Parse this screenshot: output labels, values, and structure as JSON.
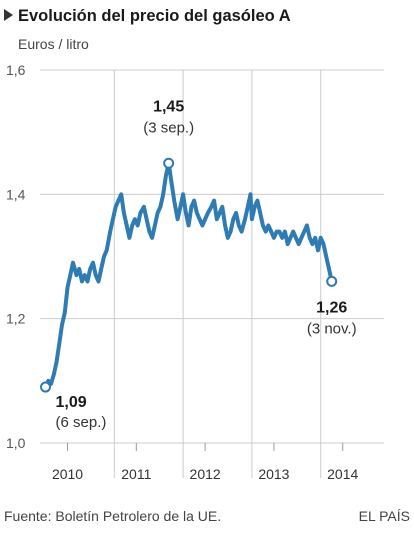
{
  "title": "Evolución del precio del gasóleo A",
  "subtitle": "Euros / litro",
  "source": "Fuente: Boletín Petrolero de la UE.",
  "brand": "EL PAÍS",
  "colors": {
    "line": "#2f7bb3",
    "grid": "#cccccc",
    "text": "#1a1a1a",
    "bullet": "#333333"
  },
  "chart_data": {
    "type": "line",
    "title": "Evolución del precio del gasóleo A",
    "ylabel": "Euros / litro",
    "xlabel": "",
    "ylim": [
      1.0,
      1.6
    ],
    "yticks": [
      1.0,
      1.2,
      1.4,
      1.6
    ],
    "ytick_labels": [
      "1,0",
      "1,2",
      "1,4",
      "1,6"
    ],
    "xticks": [
      {
        "label": "2010",
        "x": 2010.0
      },
      {
        "label": "2011",
        "x": 2011.0
      },
      {
        "label": "2012",
        "x": 2012.0
      },
      {
        "label": "2013",
        "x": 2013.0
      },
      {
        "label": "2014",
        "x": 2014.0
      }
    ],
    "xgrid": [
      2010.68,
      2011.68,
      2012.68,
      2013.68
    ],
    "xlim": [
      2009.78,
      2014.42
    ],
    "grid": true,
    "series": [
      {
        "x": [
          2009.68,
          2009.72,
          2009.76,
          2009.8,
          2009.84,
          2009.88,
          2009.92,
          2009.96,
          2010.0,
          2010.04,
          2010.08,
          2010.13,
          2010.17,
          2010.21,
          2010.25,
          2010.29,
          2010.33,
          2010.37,
          2010.41,
          2010.45,
          2010.49,
          2010.53,
          2010.57,
          2010.62,
          2010.66,
          2010.7,
          2010.74,
          2010.78,
          2010.82,
          2010.86,
          2010.9,
          2010.94,
          2010.98,
          2011.02,
          2011.06,
          2011.11,
          2011.15,
          2011.19,
          2011.23,
          2011.27,
          2011.31,
          2011.35,
          2011.39,
          2011.43,
          2011.47,
          2011.51,
          2011.55,
          2011.6,
          2011.64,
          2011.68,
          2011.72,
          2011.76,
          2011.8,
          2011.84,
          2011.88,
          2011.92,
          2011.96,
          2012.0,
          2012.04,
          2012.09,
          2012.13,
          2012.17,
          2012.21,
          2012.25,
          2012.29,
          2012.33,
          2012.37,
          2012.41,
          2012.45,
          2012.49,
          2012.53,
          2012.58,
          2012.62,
          2012.66,
          2012.68,
          2012.72,
          2012.76,
          2012.8,
          2012.84,
          2012.88,
          2012.92,
          2012.96,
          2013.0,
          2013.04,
          2013.08,
          2013.12,
          2013.16,
          2013.2,
          2013.24,
          2013.28,
          2013.32,
          2013.36,
          2013.4,
          2013.44,
          2013.48,
          2013.52,
          2013.56,
          2013.6,
          2013.64,
          2013.68,
          2013.72,
          2013.76,
          2013.8,
          2013.84
        ],
        "values": [
          1.09,
          1.1,
          1.095,
          1.11,
          1.13,
          1.16,
          1.19,
          1.21,
          1.25,
          1.27,
          1.29,
          1.27,
          1.28,
          1.26,
          1.27,
          1.26,
          1.28,
          1.29,
          1.27,
          1.26,
          1.28,
          1.3,
          1.31,
          1.34,
          1.36,
          1.38,
          1.39,
          1.4,
          1.37,
          1.35,
          1.33,
          1.35,
          1.36,
          1.35,
          1.37,
          1.38,
          1.36,
          1.34,
          1.33,
          1.35,
          1.37,
          1.38,
          1.4,
          1.43,
          1.45,
          1.42,
          1.39,
          1.36,
          1.38,
          1.4,
          1.37,
          1.35,
          1.38,
          1.39,
          1.37,
          1.36,
          1.35,
          1.36,
          1.37,
          1.38,
          1.39,
          1.36,
          1.37,
          1.38,
          1.35,
          1.33,
          1.34,
          1.36,
          1.37,
          1.35,
          1.34,
          1.36,
          1.38,
          1.4,
          1.36,
          1.38,
          1.39,
          1.37,
          1.35,
          1.34,
          1.35,
          1.34,
          1.33,
          1.34,
          1.34,
          1.33,
          1.34,
          1.32,
          1.33,
          1.34,
          1.33,
          1.32,
          1.33,
          1.34,
          1.35,
          1.33,
          1.32,
          1.33,
          1.31,
          1.33,
          1.32,
          1.3,
          1.28,
          1.26
        ]
      }
    ],
    "annotations": [
      {
        "value": "1,09",
        "date": "(6 sep.)",
        "x": 2009.68,
        "y": 1.09
      },
      {
        "value": "1,45",
        "date": "(3 sep.)",
        "x": 2011.47,
        "y": 1.45
      },
      {
        "value": "1,26",
        "date": "(3 nov.)",
        "x": 2013.84,
        "y": 1.26
      }
    ]
  }
}
